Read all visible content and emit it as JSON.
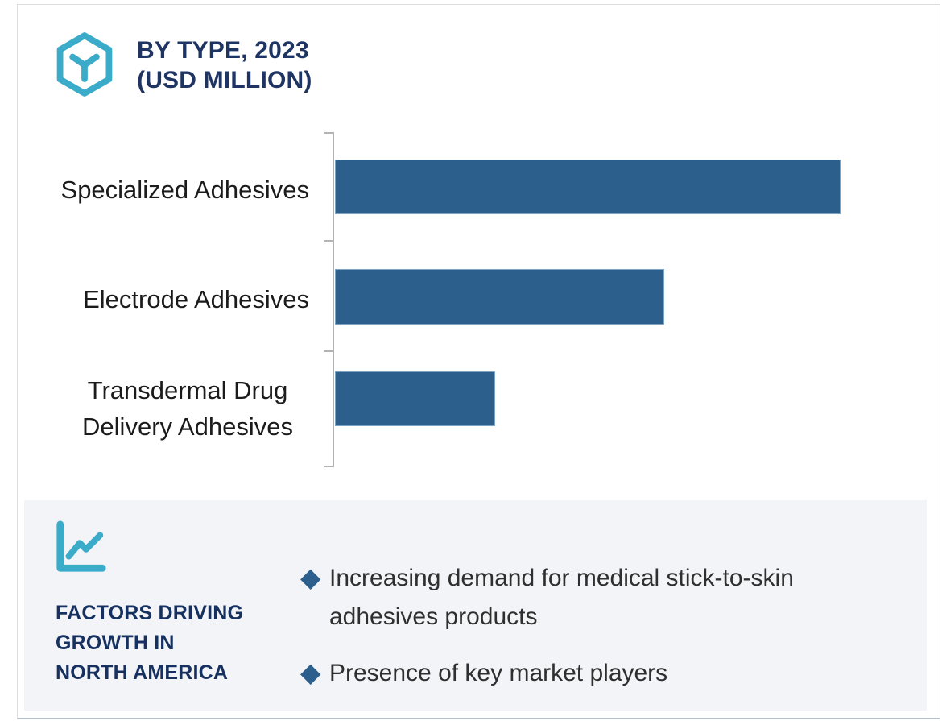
{
  "header": {
    "icon": "hexagon-y-icon",
    "title_line1": "BY TYPE, 2023",
    "title_line2": "(USD MILLION)"
  },
  "chart_data": {
    "type": "bar",
    "orientation": "horizontal",
    "title": "BY TYPE, 2023 (USD MILLION)",
    "categories": [
      "Specialized Adhesives",
      "Electrode Adhesives",
      "Transdermal Drug Delivery Adhesives"
    ],
    "values": [
      628,
      409,
      199
    ],
    "value_note": "no numeric data labels shown in figure; values are relative magnitudes estimated from bar lengths",
    "xlim": [
      0,
      731
    ],
    "xlabel": "",
    "ylabel": "",
    "grid": false,
    "legend": false,
    "bar_color": "#2d5f8d",
    "axis_color": "#b3b3b3"
  },
  "factors_panel": {
    "icon": "line-chart-icon",
    "bg_color": "#f2f4f8",
    "heading": "FACTORS DRIVING GROWTH IN NORTH AMERICA",
    "heading_lines": [
      "FACTORS DRIVING",
      "GROWTH IN",
      "NORTH AMERICA"
    ],
    "bullet_marker": "◆",
    "bullets": [
      "Increasing demand for medical stick-to-skin adhesives products",
      "Presence of key market players"
    ]
  },
  "colors": {
    "accent_cyan": "#3aabc9",
    "title_navy": "#1e3462",
    "bar_blue": "#2d5f8d",
    "panel_bg": "#f2f4f8",
    "axis_gray": "#b3b3b3",
    "body_text": "#2f2f2f",
    "card_border": "#dcdee2"
  }
}
